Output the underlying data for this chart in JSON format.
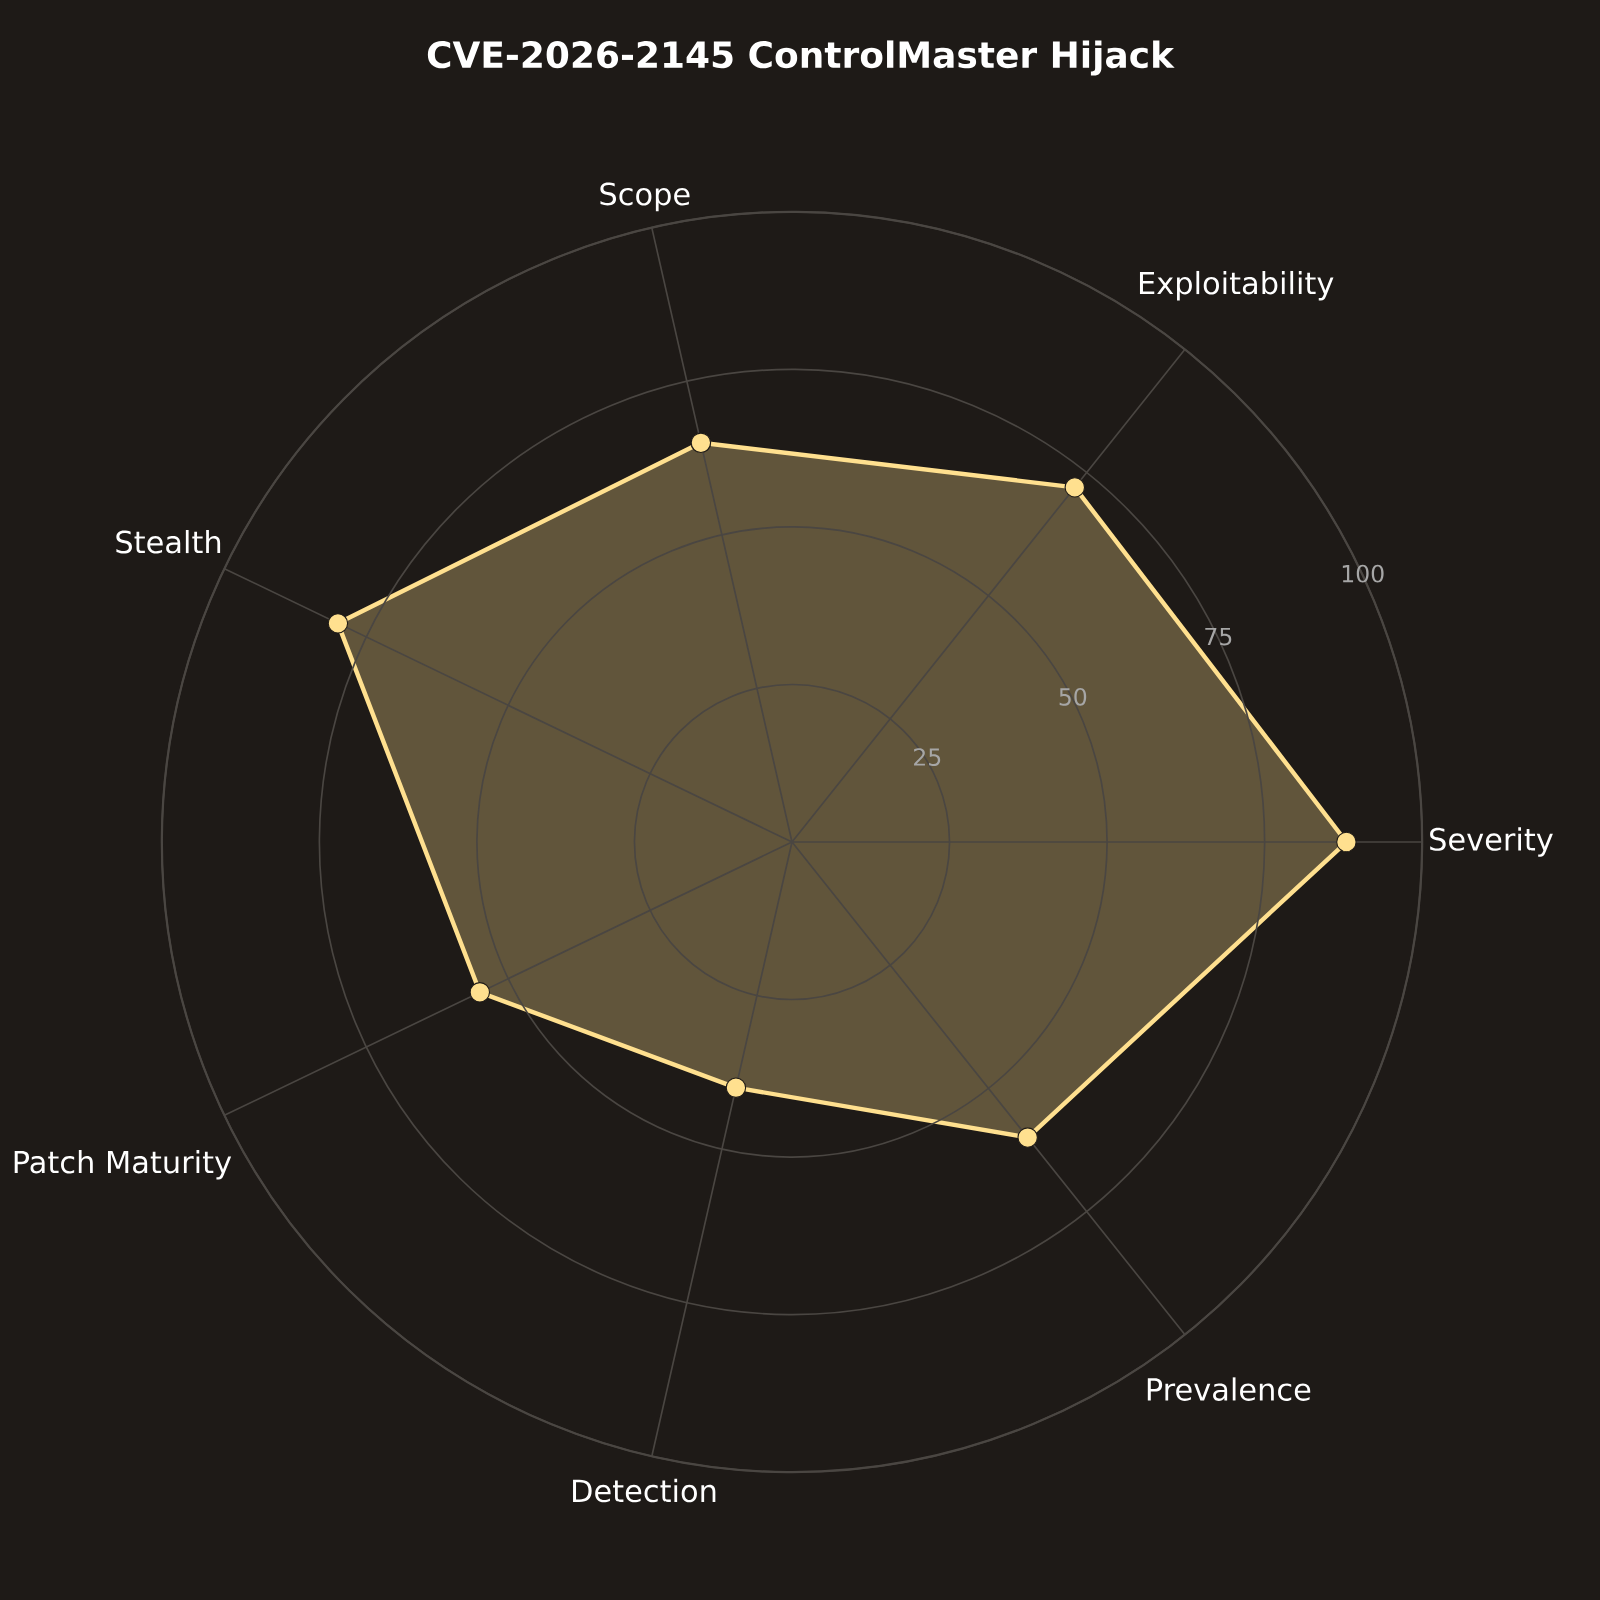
{
  "chart_data": {
    "type": "radar",
    "title": "CVE-2026-2145 ControlMaster Hijack",
    "categories": [
      "Scope",
      "Exploitability",
      "Severity",
      "Prevalence",
      "Detection",
      "Patch Maturity",
      "Stealth"
    ],
    "series": [
      {
        "color": "#ffe08f",
        "values": [
          65,
          72,
          88,
          60,
          40,
          55,
          80
        ]
      }
    ],
    "ylim": [
      0,
      100
    ],
    "yticks": [
      25,
      50,
      75,
      100
    ],
    "grid": true,
    "marker": "circle",
    "line_style": "solid"
  }
}
